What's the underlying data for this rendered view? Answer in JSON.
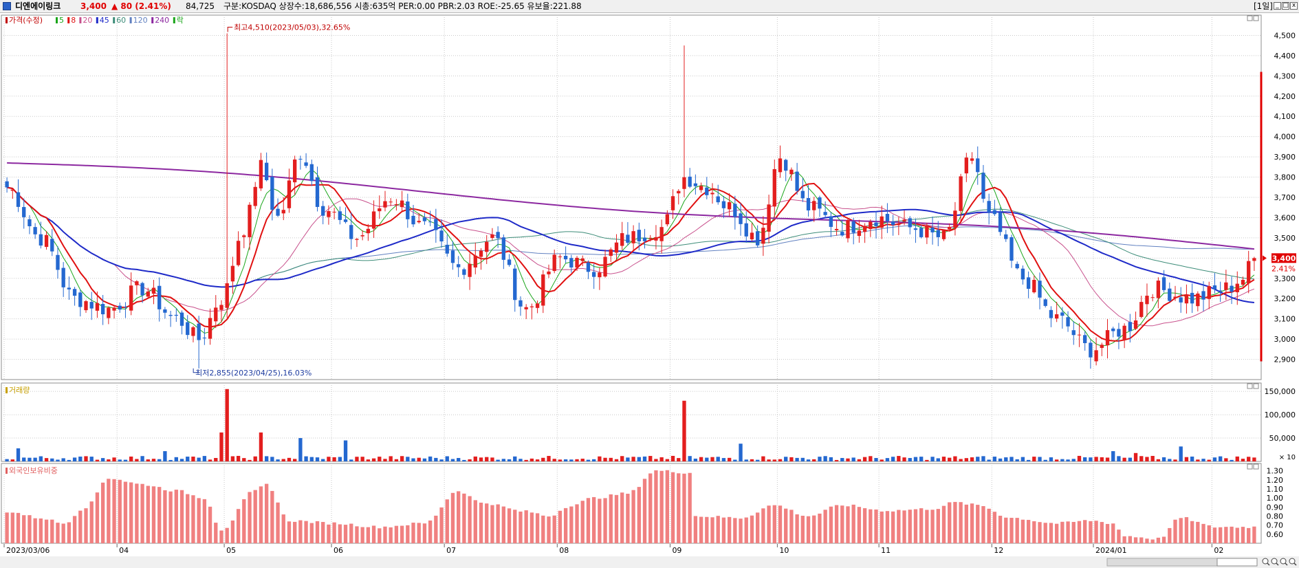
{
  "header": {
    "name": "디엔에이링크",
    "price": "3,400",
    "change": "▲  80  (2.41%)",
    "volume": "84,725",
    "info": "구분:KOSDAQ  상장수:18,686,556  시총:635억  PER:0.00  PBR:2.03  ROE:-25.65  유보율:221.88",
    "period": "[1일]",
    "btn_min": "_",
    "btn_max": "□",
    "btn_close": "x"
  },
  "colors": {
    "up": "#e31e1e",
    "down": "#2468d0",
    "ma5": "#19a519",
    "ma8": "#e01010",
    "ma20": "#c8508c",
    "ma45": "#1e2ac8",
    "ma60": "#3c8c78",
    "ma120": "#6080c0",
    "ma240": "#8c28a0",
    "foreign_bar": "#f08080",
    "grid": "#c8c8c8"
  },
  "chart_data": [
    {
      "type": "candlestick",
      "legend": [
        {
          "label": "가격(수정)",
          "color": "#c00000"
        },
        {
          "label": "5",
          "color": "#19a519"
        },
        {
          "label": "8",
          "color": "#e01010"
        },
        {
          "label": "20",
          "color": "#c8508c"
        },
        {
          "label": "45",
          "color": "#1e2ac8"
        },
        {
          "label": "60",
          "color": "#3c8c78"
        },
        {
          "label": "120",
          "color": "#6080c0"
        },
        {
          "label": "240",
          "color": "#8c28a0"
        },
        {
          "label": "락",
          "color": "#19a519"
        }
      ],
      "ylim": [
        2800,
        4600
      ],
      "yticks": [
        {
          "value": 2900,
          "label": "2,900"
        },
        {
          "value": 3000,
          "label": "3,000"
        },
        {
          "value": 3100,
          "label": "3,100"
        },
        {
          "value": 3200,
          "label": "3,200"
        },
        {
          "value": 3300,
          "label": "3,300"
        },
        {
          "value": 3400,
          "label": "3,400"
        },
        {
          "value": 3500,
          "label": "3,500"
        },
        {
          "value": 3600,
          "label": "3,600"
        },
        {
          "value": 3700,
          "label": "3,700"
        },
        {
          "value": 3800,
          "label": "3,800"
        },
        {
          "value": 3900,
          "label": "3,900"
        },
        {
          "value": 4000,
          "label": "4,000"
        },
        {
          "value": 4100,
          "label": "4,100"
        },
        {
          "value": 4200,
          "label": "4,200"
        },
        {
          "value": 4300,
          "label": "4,300"
        },
        {
          "value": 4400,
          "label": "4,400"
        },
        {
          "value": 4500,
          "label": "4,500"
        }
      ],
      "last_price_label": "3,400",
      "last_change_label": "2.41%",
      "last_price": 3400,
      "annotation_high": "최고4,510(2023/05/03),32.65%",
      "annotation_low": "최저2,855(2023/04/25),16.03%",
      "high_value": 4510,
      "low_value": 2855,
      "high_index": 39,
      "low_index": 34,
      "ma240_start": 3870,
      "ma240_end": 3445,
      "keypoints": [
        [
          0,
          3750
        ],
        [
          6,
          3500
        ],
        [
          12,
          3200
        ],
        [
          18,
          3150
        ],
        [
          24,
          3250
        ],
        [
          30,
          3100
        ],
        [
          34,
          3000
        ],
        [
          38,
          3200
        ],
        [
          42,
          3550
        ],
        [
          45,
          3850
        ],
        [
          48,
          3600
        ],
        [
          52,
          3920
        ],
        [
          56,
          3650
        ],
        [
          62,
          3500
        ],
        [
          68,
          3700
        ],
        [
          74,
          3550
        ],
        [
          80,
          3350
        ],
        [
          86,
          3500
        ],
        [
          92,
          3150
        ],
        [
          98,
          3400
        ],
        [
          104,
          3350
        ],
        [
          110,
          3500
        ],
        [
          116,
          3550
        ],
        [
          120,
          3800
        ],
        [
          124,
          3750
        ],
        [
          128,
          3650
        ],
        [
          133,
          3500
        ],
        [
          137,
          3900
        ],
        [
          142,
          3650
        ],
        [
          148,
          3550
        ],
        [
          154,
          3600
        ],
        [
          160,
          3550
        ],
        [
          166,
          3500
        ],
        [
          171,
          3900
        ],
        [
          174,
          3600
        ],
        [
          180,
          3300
        ],
        [
          186,
          3100
        ],
        [
          192,
          2950
        ],
        [
          198,
          3050
        ],
        [
          203,
          3250
        ],
        [
          210,
          3200
        ],
        [
          216,
          3250
        ],
        [
          219,
          3300
        ],
        [
          221,
          3400
        ]
      ],
      "dates": [
        {
          "label": "2023/03/06",
          "index": 0
        },
        {
          "label": "04",
          "index": 20
        },
        {
          "label": "05",
          "index": 39
        },
        {
          "label": "06",
          "index": 58
        },
        {
          "label": "07",
          "index": 78
        },
        {
          "label": "08",
          "index": 98
        },
        {
          "label": "09",
          "index": 118
        },
        {
          "label": "10",
          "index": 137
        },
        {
          "label": "11",
          "index": 155
        },
        {
          "label": "12",
          "index": 175
        },
        {
          "label": "2024/01",
          "index": 193
        },
        {
          "label": "02",
          "index": 214
        }
      ],
      "total_bars": 222
    },
    {
      "type": "bar",
      "legend": [
        {
          "label": "거래량",
          "color": "#c8a000"
        }
      ],
      "ylim": [
        0,
        165000
      ],
      "yticks": [
        {
          "value": 50000,
          "label": "50,000"
        },
        {
          "value": 100000,
          "label": "100,000"
        },
        {
          "value": 150000,
          "label": "150,000"
        }
      ],
      "unit_label": "× 10",
      "spikes": [
        [
          39,
          155000
        ],
        [
          38,
          62000
        ],
        [
          45,
          62000
        ],
        [
          52,
          50000
        ],
        [
          60,
          45000
        ],
        [
          120,
          130000
        ],
        [
          130,
          38000
        ],
        [
          28,
          22000
        ],
        [
          2,
          28000
        ],
        [
          200,
          18000
        ],
        [
          208,
          32000
        ],
        [
          196,
          22000
        ]
      ]
    },
    {
      "type": "bar",
      "legend": [
        {
          "label": "외국인보유비중",
          "color": "#e06060"
        }
      ],
      "ylim": [
        0.5,
        1.35
      ],
      "yticks": [
        {
          "value": 0.6,
          "label": "0.60"
        },
        {
          "value": 0.7,
          "label": "0.70"
        },
        {
          "value": 0.8,
          "label": "0.80"
        },
        {
          "value": 0.9,
          "label": "0.90"
        },
        {
          "value": 1.0,
          "label": "1.00"
        },
        {
          "value": 1.1,
          "label": "1.10"
        },
        {
          "value": 1.2,
          "label": "1.20"
        },
        {
          "value": 1.3,
          "label": "1.30"
        }
      ],
      "keypoints": [
        [
          0,
          0.85
        ],
        [
          6,
          0.78
        ],
        [
          10,
          0.72
        ],
        [
          14,
          0.9
        ],
        [
          18,
          1.22
        ],
        [
          24,
          1.15
        ],
        [
          30,
          1.08
        ],
        [
          35,
          1.0
        ],
        [
          38,
          0.65
        ],
        [
          44,
          1.08
        ],
        [
          46,
          1.15
        ],
        [
          50,
          0.75
        ],
        [
          58,
          0.72
        ],
        [
          66,
          0.68
        ],
        [
          74,
          0.72
        ],
        [
          80,
          1.08
        ],
        [
          84,
          0.95
        ],
        [
          92,
          0.85
        ],
        [
          96,
          0.8
        ],
        [
          100,
          0.92
        ],
        [
          104,
          1.0
        ],
        [
          110,
          1.05
        ],
        [
          115,
          1.3
        ],
        [
          121,
          1.28
        ],
        [
          122,
          0.8
        ],
        [
          130,
          0.78
        ],
        [
          136,
          0.92
        ],
        [
          142,
          0.8
        ],
        [
          148,
          0.92
        ],
        [
          156,
          0.86
        ],
        [
          164,
          0.88
        ],
        [
          168,
          0.95
        ],
        [
          172,
          0.92
        ],
        [
          178,
          0.78
        ],
        [
          186,
          0.72
        ],
        [
          192,
          0.75
        ],
        [
          196,
          0.72
        ],
        [
          198,
          0.58
        ],
        [
          204,
          0.55
        ],
        [
          208,
          0.78
        ],
        [
          214,
          0.68
        ],
        [
          221,
          0.68
        ]
      ]
    }
  ]
}
